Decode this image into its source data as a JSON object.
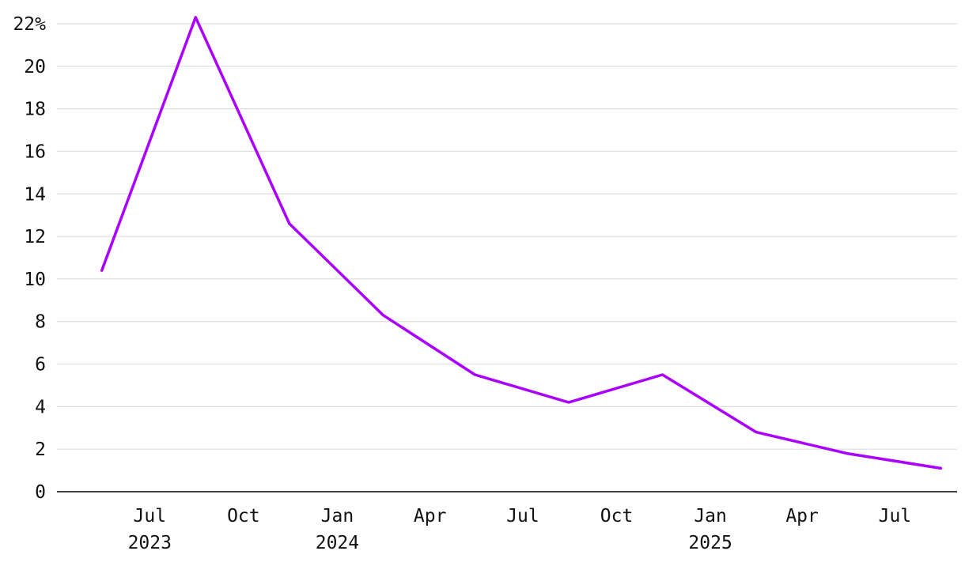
{
  "chart_data": {
    "type": "line",
    "title": "",
    "xlabel": "",
    "ylabel": "",
    "y_unit": "%",
    "ylim": [
      0,
      22
    ],
    "y_ticks": [
      0,
      2,
      4,
      6,
      8,
      10,
      12,
      14,
      16,
      18,
      20,
      22
    ],
    "y_tick_labels": [
      "0",
      "2",
      "4",
      "6",
      "8",
      "10",
      "12",
      "14",
      "16",
      "18",
      "20",
      "22%"
    ],
    "xlim": [
      "2023-04-01",
      "2025-08-31"
    ],
    "x_ticks": [
      {
        "date": "2023-07-01",
        "label": "Jul",
        "year": "2023"
      },
      {
        "date": "2023-10-01",
        "label": "Oct",
        "year": ""
      },
      {
        "date": "2024-01-01",
        "label": "Jan",
        "year": "2024"
      },
      {
        "date": "2024-04-01",
        "label": "Apr",
        "year": ""
      },
      {
        "date": "2024-07-01",
        "label": "Jul",
        "year": ""
      },
      {
        "date": "2024-10-01",
        "label": "Oct",
        "year": ""
      },
      {
        "date": "2025-01-01",
        "label": "Jan",
        "year": "2025"
      },
      {
        "date": "2025-04-01",
        "label": "Apr",
        "year": ""
      },
      {
        "date": "2025-07-01",
        "label": "Jul",
        "year": ""
      }
    ],
    "grid": true,
    "legend": "none",
    "series": [
      {
        "color": "#aa00ff",
        "x": [
          "2023-05-15",
          "2023-08-15",
          "2023-11-15",
          "2024-02-15",
          "2024-05-15",
          "2024-08-15",
          "2024-11-15",
          "2025-02-15",
          "2025-05-15",
          "2025-08-15"
        ],
        "values": [
          10.4,
          22.3,
          12.6,
          8.3,
          5.5,
          4.2,
          5.5,
          2.8,
          1.8,
          1.1
        ]
      }
    ]
  }
}
